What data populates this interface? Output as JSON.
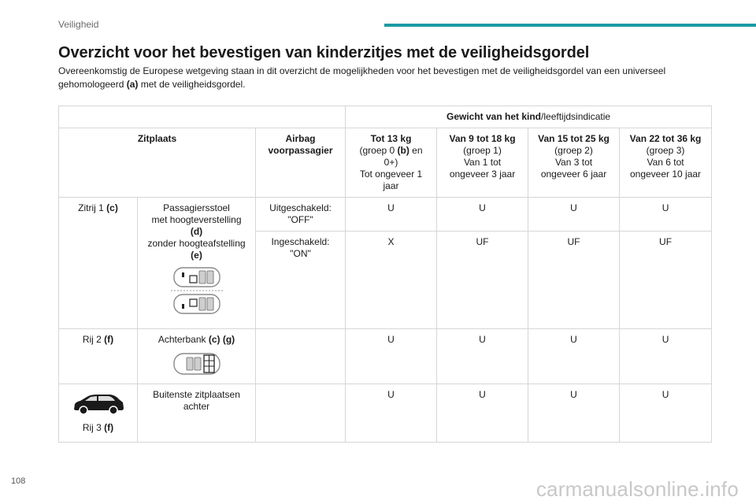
{
  "header": {
    "section": "Veiligheid"
  },
  "title": "Overzicht voor het bevestigen van kinderzitjes met de veiligheidsgordel",
  "intro": {
    "before": "Overeenkomstig de Europese wetgeving staan in dit overzicht de mogelijkheden voor het bevestigen met de veiligheidsgordel van een universeel gehomologeerd ",
    "ref": "(a)",
    "after": " met de veiligheidsgordel."
  },
  "table": {
    "weight_header": {
      "bold": "Gewicht van het kind",
      "normal": "/leeftijdsindicatie"
    },
    "col_zitplaats": "Zitplaats",
    "col_airbag": {
      "line1": "Airbag",
      "line2": "voorpassagier"
    },
    "groups": [
      {
        "title": "Tot 13 kg",
        "l1": "(groep 0 ",
        "l1b": "(b)",
        "l1c": " en",
        "l2": "0+)",
        "l3": "Tot ongeveer 1",
        "l4": "jaar"
      },
      {
        "title": "Van 9 tot 18 kg",
        "l1": "(groep 1)",
        "l2": "Van 1 tot",
        "l3": "ongeveer 3 jaar"
      },
      {
        "title": "Van 15 tot 25 kg",
        "l1": "(groep 2)",
        "l2": "Van 3 tot",
        "l3": "ongeveer 6 jaar"
      },
      {
        "title": "Van 22 tot 36 kg",
        "l1": "(groep 3)",
        "l2": "Van 6 tot",
        "l3": "ongeveer 10 jaar"
      }
    ],
    "row1": {
      "label": "Zitrij 1 ",
      "label_ref": "(c)",
      "seat": {
        "l1": "Passagiersstoel",
        "l2": "met hoogteverstelling",
        "l2ref": "(d)",
        "l3": "zonder hoogteafstelling",
        "l3ref": "(e)"
      },
      "off": {
        "label": "Uitgeschakeld:",
        "value": "\"OFF\"",
        "cells": [
          "U",
          "U",
          "U",
          "U"
        ]
      },
      "on": {
        "label": "Ingeschakeld:",
        "value": "\"ON\"",
        "cells": [
          "X",
          "UF",
          "UF",
          "UF"
        ]
      }
    },
    "row2": {
      "label": "Rij 2 ",
      "label_ref": "(f)",
      "seat": "Achterbank ",
      "seat_ref": "(c) (g)",
      "cells": [
        "U",
        "U",
        "U",
        "U"
      ]
    },
    "row3": {
      "label": "Rij 3 ",
      "label_ref": "(f)",
      "seat_l1": "Buitenste zitplaatsen",
      "seat_l2": "achter",
      "cells": [
        "U",
        "U",
        "U",
        "U"
      ]
    }
  },
  "footer": {
    "page": "108",
    "watermark": "carmanualsonline.info"
  }
}
